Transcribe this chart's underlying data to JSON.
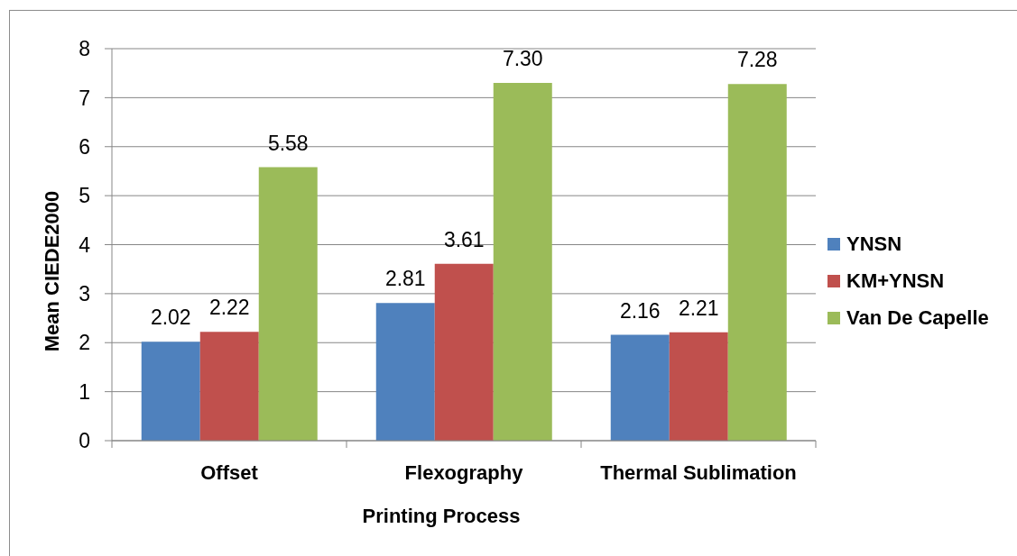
{
  "chart_data": {
    "type": "bar",
    "xlabel": "Printing Process",
    "ylabel": "Mean CIEDE2000",
    "categories": [
      "Offset",
      "Flexography",
      "Thermal Sublimation"
    ],
    "series": [
      {
        "name": "YNSN",
        "color": "#4f81bd",
        "values": [
          2.02,
          2.81,
          2.16
        ],
        "value_labels": [
          "2.02",
          "2.81",
          "2.16"
        ]
      },
      {
        "name": "KM+YNSN",
        "color": "#c0504d",
        "values": [
          2.22,
          3.61,
          2.21
        ],
        "value_labels": [
          "2.22",
          "3.61",
          "2.21"
        ]
      },
      {
        "name": "Van De Capelle",
        "color": "#9bbb59",
        "values": [
          5.58,
          7.3,
          7.28
        ],
        "value_labels": [
          "5.58",
          "7.30",
          "7.28"
        ]
      }
    ],
    "ylim": [
      0,
      8
    ],
    "yticks": [
      0,
      1,
      2,
      3,
      4,
      5,
      6,
      7,
      8
    ],
    "grid": "y",
    "legend": "right"
  }
}
